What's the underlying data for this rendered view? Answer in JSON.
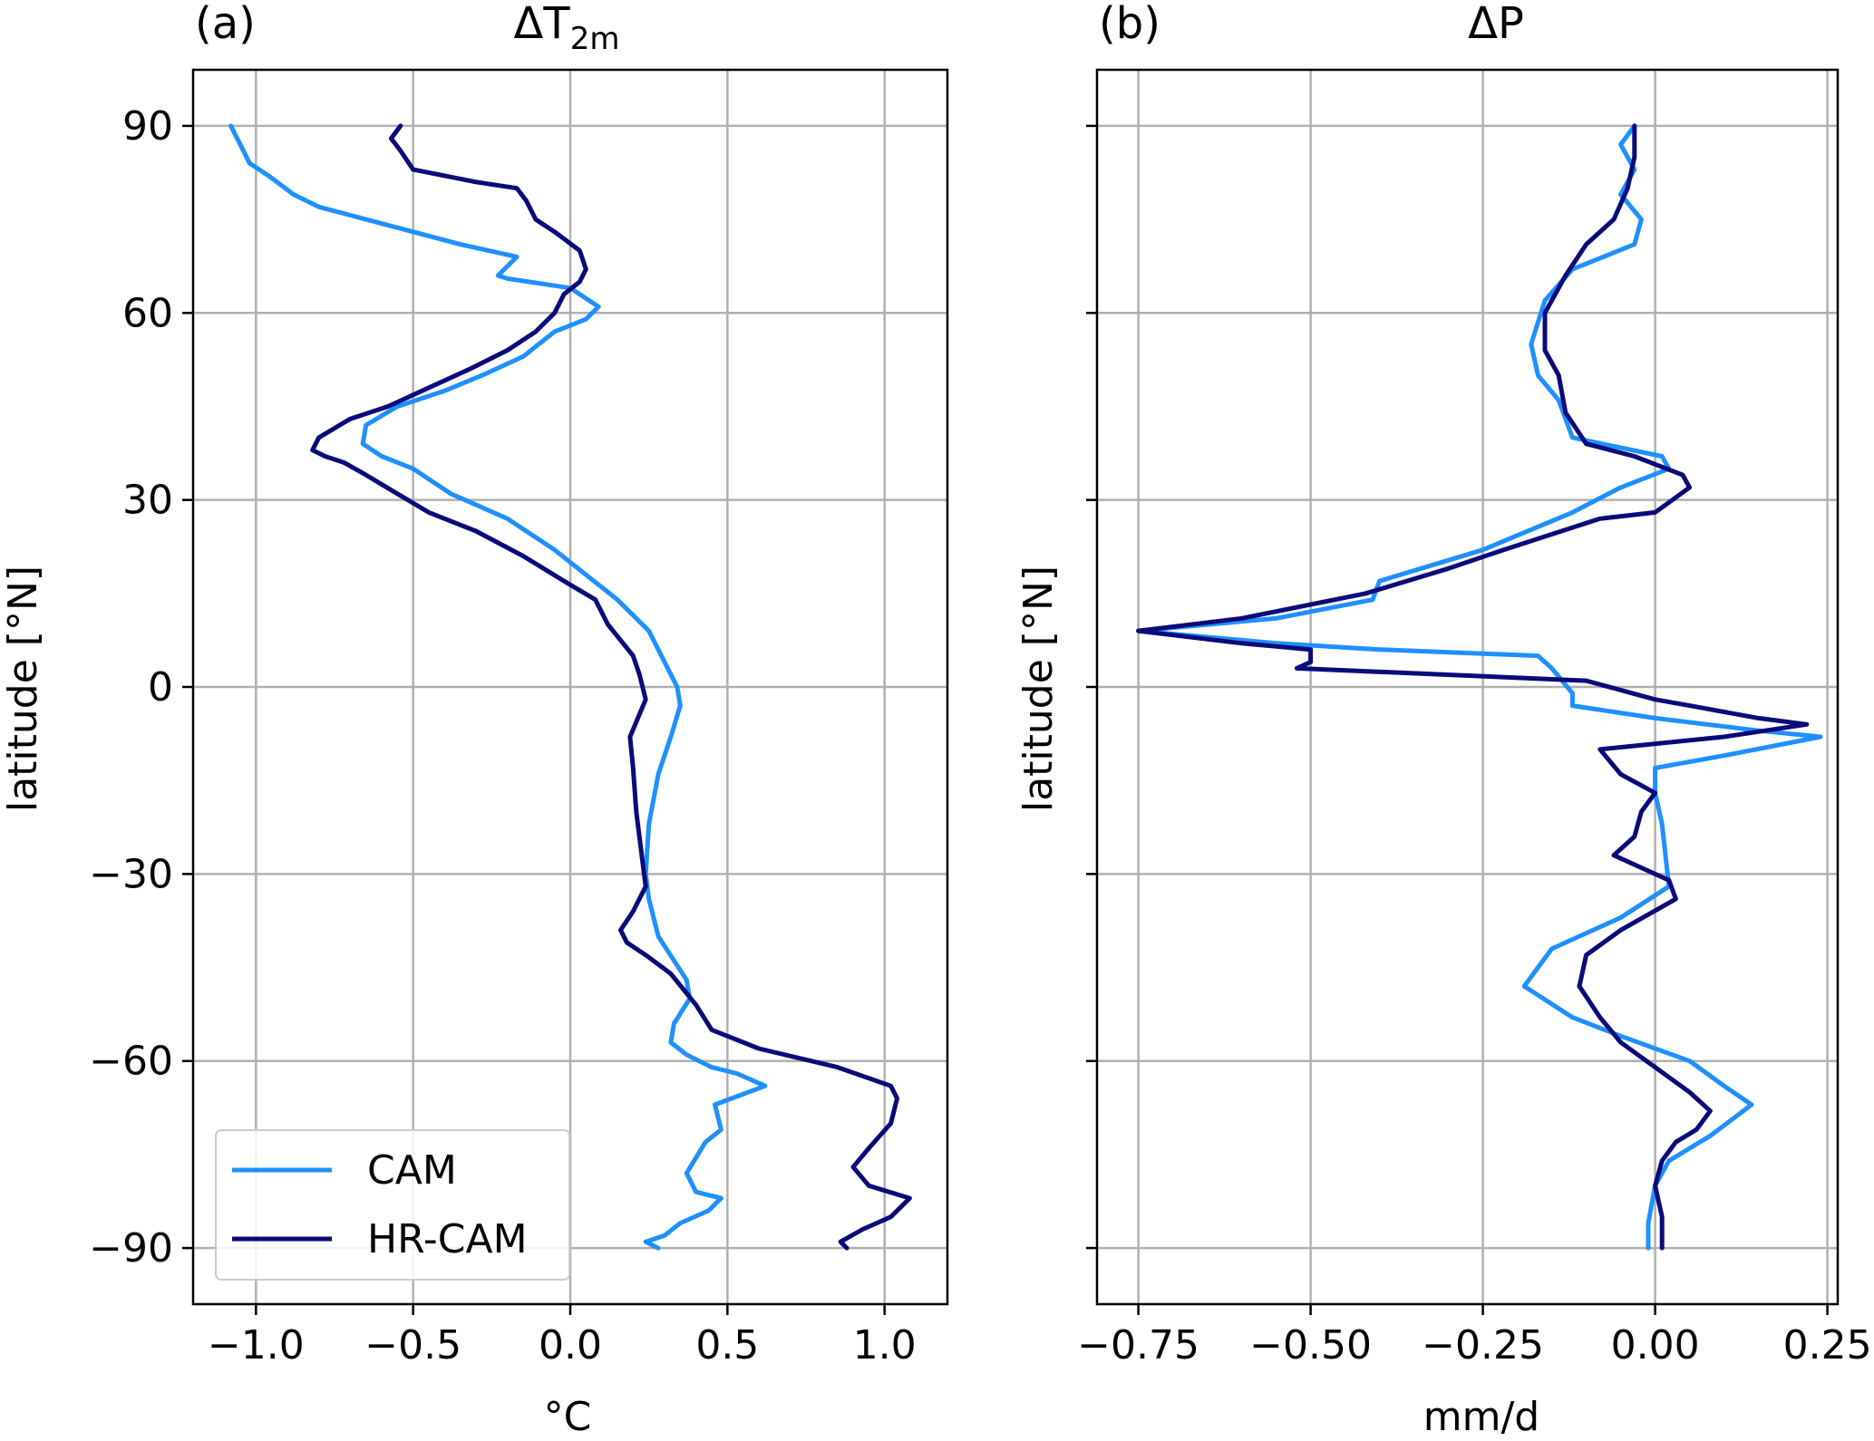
{
  "chart_data": [
    {
      "type": "line",
      "panel_label": "(a)",
      "title": "ΔT",
      "title_subscript": "2m",
      "xlabel": "°C",
      "ylabel": "latitude [°N]",
      "xlim": [
        -1.2,
        1.2
      ],
      "ylim": [
        -99,
        99
      ],
      "xticks": [
        -1.0,
        -0.5,
        0.0,
        0.5,
        1.0
      ],
      "xtick_labels": [
        "−1.0",
        "−0.5",
        "0.0",
        "0.5",
        "1.0"
      ],
      "yticks": [
        90,
        60,
        30,
        0,
        -30,
        -60,
        -90
      ],
      "ytick_labels": [
        "90",
        "60",
        "30",
        "0",
        "−30",
        "−60",
        "−90"
      ],
      "grid": true,
      "legend": {
        "placement": "bottom-left",
        "entries": [
          "CAM",
          "HR-CAM"
        ]
      },
      "series": [
        {
          "name": "CAM",
          "color": "#1e90ff",
          "points": [
            [
              -1.08,
              90
            ],
            [
              -1.04,
              86
            ],
            [
              -1.02,
              84
            ],
            [
              -0.96,
              82
            ],
            [
              -0.88,
              79
            ],
            [
              -0.8,
              77
            ],
            [
              -0.65,
              75
            ],
            [
              -0.5,
              73
            ],
            [
              -0.35,
              71
            ],
            [
              -0.17,
              69
            ],
            [
              -0.23,
              66
            ],
            [
              -0.2,
              65.5
            ],
            [
              0.0,
              64
            ],
            [
              0.09,
              61
            ],
            [
              0.05,
              59
            ],
            [
              -0.05,
              57
            ],
            [
              -0.15,
              53
            ],
            [
              -0.28,
              50
            ],
            [
              -0.4,
              47.5
            ],
            [
              -0.55,
              45
            ],
            [
              -0.65,
              42
            ],
            [
              -0.66,
              39
            ],
            [
              -0.6,
              37
            ],
            [
              -0.5,
              35
            ],
            [
              -0.38,
              31
            ],
            [
              -0.2,
              27
            ],
            [
              -0.05,
              22
            ],
            [
              0.05,
              18
            ],
            [
              0.15,
              14
            ],
            [
              0.25,
              9
            ],
            [
              0.3,
              4
            ],
            [
              0.34,
              0
            ],
            [
              0.35,
              -3
            ],
            [
              0.32,
              -8
            ],
            [
              0.28,
              -14
            ],
            [
              0.25,
              -22
            ],
            [
              0.24,
              -30
            ],
            [
              0.25,
              -34
            ],
            [
              0.28,
              -40
            ],
            [
              0.37,
              -47
            ],
            [
              0.38,
              -50
            ],
            [
              0.33,
              -54
            ],
            [
              0.32,
              -57
            ],
            [
              0.37,
              -59
            ],
            [
              0.45,
              -61
            ],
            [
              0.53,
              -62
            ],
            [
              0.62,
              -64
            ],
            [
              0.46,
              -67
            ],
            [
              0.48,
              -71
            ],
            [
              0.43,
              -73
            ],
            [
              0.37,
              -78
            ],
            [
              0.4,
              -81
            ],
            [
              0.48,
              -82
            ],
            [
              0.44,
              -84
            ],
            [
              0.35,
              -86
            ],
            [
              0.3,
              -88
            ],
            [
              0.24,
              -89
            ],
            [
              0.28,
              -90
            ]
          ]
        },
        {
          "name": "HR-CAM",
          "color": "#0a0a7a",
          "points": [
            [
              -0.54,
              90
            ],
            [
              -0.57,
              88
            ],
            [
              -0.54,
              86
            ],
            [
              -0.5,
              83
            ],
            [
              -0.3,
              81
            ],
            [
              -0.17,
              80
            ],
            [
              -0.14,
              78
            ],
            [
              -0.11,
              75
            ],
            [
              -0.05,
              73
            ],
            [
              0.03,
              70
            ],
            [
              0.05,
              67
            ],
            [
              0.03,
              65
            ],
            [
              -0.02,
              63
            ],
            [
              -0.05,
              60
            ],
            [
              -0.11,
              57
            ],
            [
              -0.2,
              54
            ],
            [
              -0.32,
              51
            ],
            [
              -0.45,
              48
            ],
            [
              -0.58,
              45
            ],
            [
              -0.7,
              43
            ],
            [
              -0.8,
              40
            ],
            [
              -0.82,
              38
            ],
            [
              -0.78,
              37
            ],
            [
              -0.72,
              36
            ],
            [
              -0.65,
              34
            ],
            [
              -0.55,
              31
            ],
            [
              -0.45,
              28
            ],
            [
              -0.3,
              25
            ],
            [
              -0.15,
              21
            ],
            [
              -0.02,
              17
            ],
            [
              0.08,
              14
            ],
            [
              0.12,
              10
            ],
            [
              0.2,
              5
            ],
            [
              0.22,
              2
            ],
            [
              0.24,
              -2
            ],
            [
              0.19,
              -8
            ],
            [
              0.2,
              -13
            ],
            [
              0.21,
              -20
            ],
            [
              0.23,
              -28
            ],
            [
              0.24,
              -32
            ],
            [
              0.2,
              -36
            ],
            [
              0.16,
              -39
            ],
            [
              0.18,
              -41
            ],
            [
              0.24,
              -43
            ],
            [
              0.32,
              -46
            ],
            [
              0.4,
              -51
            ],
            [
              0.45,
              -55
            ],
            [
              0.6,
              -58
            ],
            [
              0.85,
              -61
            ],
            [
              1.02,
              -64
            ],
            [
              1.04,
              -66
            ],
            [
              1.02,
              -70
            ],
            [
              0.95,
              -74
            ],
            [
              0.9,
              -77
            ],
            [
              0.95,
              -80
            ],
            [
              1.08,
              -82
            ],
            [
              1.02,
              -85
            ],
            [
              0.93,
              -87
            ],
            [
              0.86,
              -89
            ],
            [
              0.88,
              -90
            ]
          ]
        }
      ]
    },
    {
      "type": "line",
      "panel_label": "(b)",
      "title": "ΔP",
      "xlabel": "mm/d",
      "ylabel": "latitude [°N]",
      "xlim": [
        -0.81,
        0.265
      ],
      "ylim": [
        -99,
        99
      ],
      "xticks": [
        -0.75,
        -0.5,
        -0.25,
        0.0,
        0.25
      ],
      "xtick_labels": [
        "−0.75",
        "−0.50",
        "−0.25",
        "0.00",
        "0.25"
      ],
      "yticks": [
        90,
        60,
        30,
        0,
        -30,
        -60,
        -90
      ],
      "ytick_labels": [
        "90",
        "60",
        "30",
        "0",
        "−30",
        "−60",
        "−90"
      ],
      "grid": true,
      "series": [
        {
          "name": "CAM",
          "color": "#1e90ff",
          "points": [
            [
              -0.03,
              90
            ],
            [
              -0.05,
              87
            ],
            [
              -0.03,
              83
            ],
            [
              -0.05,
              79
            ],
            [
              -0.02,
              75
            ],
            [
              -0.03,
              71
            ],
            [
              -0.12,
              67
            ],
            [
              -0.16,
              62
            ],
            [
              -0.18,
              55
            ],
            [
              -0.17,
              50
            ],
            [
              -0.14,
              46
            ],
            [
              -0.12,
              40
            ],
            [
              0.01,
              37
            ],
            [
              0.02,
              35
            ],
            [
              -0.05,
              32
            ],
            [
              -0.12,
              28
            ],
            [
              -0.25,
              22
            ],
            [
              -0.4,
              17
            ],
            [
              -0.41,
              14
            ],
            [
              -0.55,
              11
            ],
            [
              -0.75,
              9
            ],
            [
              -0.55,
              7
            ],
            [
              -0.4,
              6
            ],
            [
              -0.17,
              5
            ],
            [
              -0.15,
              3
            ],
            [
              -0.12,
              -1
            ],
            [
              -0.12,
              -3
            ],
            [
              0.0,
              -5
            ],
            [
              0.15,
              -7
            ],
            [
              0.24,
              -8
            ],
            [
              0.1,
              -11
            ],
            [
              0.0,
              -13
            ],
            [
              0.0,
              -17
            ],
            [
              0.01,
              -22
            ],
            [
              0.02,
              -32
            ],
            [
              -0.05,
              -37
            ],
            [
              -0.15,
              -42
            ],
            [
              -0.19,
              -48
            ],
            [
              -0.12,
              -53
            ],
            [
              -0.05,
              -56
            ],
            [
              0.05,
              -60
            ],
            [
              0.1,
              -64
            ],
            [
              0.14,
              -67
            ],
            [
              0.08,
              -72
            ],
            [
              0.02,
              -76
            ],
            [
              0.0,
              -80
            ],
            [
              -0.01,
              -86
            ],
            [
              -0.01,
              -90
            ]
          ]
        },
        {
          "name": "HR-CAM",
          "color": "#0a0a7a",
          "points": [
            [
              -0.03,
              90
            ],
            [
              -0.03,
              85
            ],
            [
              -0.04,
              80
            ],
            [
              -0.06,
              75
            ],
            [
              -0.1,
              71
            ],
            [
              -0.13,
              66
            ],
            [
              -0.16,
              60
            ],
            [
              -0.16,
              54
            ],
            [
              -0.14,
              50
            ],
            [
              -0.13,
              44
            ],
            [
              -0.1,
              39
            ],
            [
              -0.03,
              37
            ],
            [
              0.04,
              34
            ],
            [
              0.05,
              32
            ],
            [
              0.0,
              28
            ],
            [
              -0.08,
              27
            ],
            [
              -0.22,
              22
            ],
            [
              -0.3,
              19
            ],
            [
              -0.42,
              15
            ],
            [
              -0.6,
              11
            ],
            [
              -0.75,
              9
            ],
            [
              -0.6,
              7
            ],
            [
              -0.5,
              6
            ],
            [
              -0.5,
              4
            ],
            [
              -0.52,
              3
            ],
            [
              -0.1,
              1
            ],
            [
              0.0,
              -2
            ],
            [
              0.05,
              -3
            ],
            [
              0.15,
              -5
            ],
            [
              0.22,
              -6
            ],
            [
              0.1,
              -8
            ],
            [
              -0.08,
              -10
            ],
            [
              -0.05,
              -14
            ],
            [
              0.0,
              -17
            ],
            [
              -0.02,
              -20
            ],
            [
              -0.03,
              -24
            ],
            [
              -0.06,
              -27
            ],
            [
              0.0,
              -30
            ],
            [
              0.02,
              -31
            ],
            [
              0.03,
              -34
            ],
            [
              -0.05,
              -39
            ],
            [
              -0.1,
              -43
            ],
            [
              -0.11,
              -48
            ],
            [
              -0.08,
              -53
            ],
            [
              -0.05,
              -57
            ],
            [
              0.0,
              -61
            ],
            [
              0.05,
              -65
            ],
            [
              0.08,
              -68
            ],
            [
              0.06,
              -71
            ],
            [
              0.03,
              -73
            ],
            [
              0.01,
              -76
            ],
            [
              0.0,
              -80
            ],
            [
              0.01,
              -85
            ],
            [
              0.01,
              -90
            ]
          ]
        }
      ]
    }
  ]
}
